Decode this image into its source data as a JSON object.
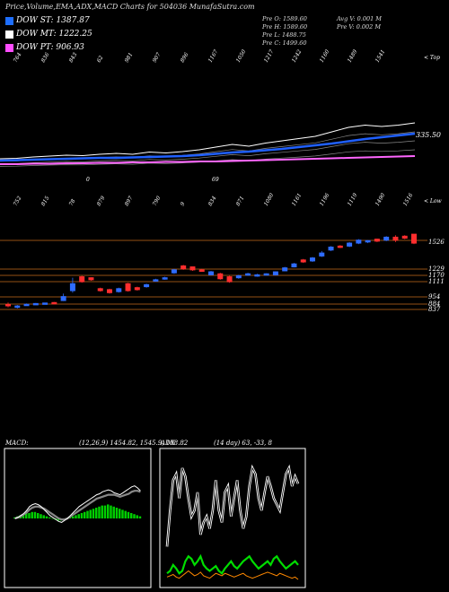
{
  "header": "Price,Volume,EMA,ADX,MACD Charts for 504036  MunafaSutra.com",
  "dow": [
    {
      "label": "DOW ST: 1387.87",
      "color": "#1e6fff"
    },
    {
      "label": "DOW MT: 1222.25",
      "color": "#ffffff"
    },
    {
      "label": "DOW PT: 906.93",
      "color": "#ff4dff"
    }
  ],
  "prev": {
    "open": "Pre   O: 1589.60",
    "high": "Pre   H: 1589.60",
    "low": "Pre   L: 1488.75",
    "close": "Pre   C: 1499.60",
    "avgv": "Avg V: 0.001  M",
    "prev": "Pre   V: 0.002  M"
  },
  "chart_data": [
    {
      "type": "line",
      "name": "ema",
      "top_labels": [
        "764",
        "836",
        "843",
        "62",
        "981",
        "907",
        "896",
        "1167",
        "1050",
        "1217",
        "1242",
        "1160",
        "1489",
        "1541"
      ],
      "mid_labels": [
        "0",
        "69"
      ],
      "ema_value_label": "335.50",
      "corner_label": "< Top",
      "series": [
        {
          "color": "#ffffff",
          "values": [
            20,
            21,
            24,
            26,
            28,
            27,
            30,
            32,
            30,
            35,
            33,
            36,
            40,
            46,
            52,
            48,
            55,
            60,
            65,
            70,
            80,
            90,
            95,
            92,
            95,
            100
          ]
        },
        {
          "color": "#2060ff",
          "values": [
            12,
            13,
            14,
            15,
            16,
            17,
            18,
            18,
            19,
            20,
            21,
            22,
            24,
            27,
            30,
            32,
            35,
            38,
            42,
            46,
            50,
            55,
            60,
            64,
            68,
            72
          ]
        },
        {
          "color": "#ff66ff",
          "values": [
            0,
            0,
            1,
            1,
            2,
            2,
            3,
            3,
            4,
            4,
            5,
            5,
            6,
            6,
            7,
            8,
            9,
            10,
            11,
            12,
            13,
            14,
            15,
            16,
            17,
            18
          ]
        }
      ]
    },
    {
      "type": "candlestick",
      "name": "price",
      "top_labels": [
        "752",
        "815",
        "78",
        "879",
        "897",
        "790",
        "9",
        "834",
        "871",
        "1080",
        "1161",
        "1196",
        "1119",
        "1490",
        "1516"
      ],
      "corner_label": "< Low",
      "levels": [
        "1526",
        "1229",
        "1170",
        "1111",
        "954",
        "884",
        "837"
      ],
      "candles": [
        {
          "o": 880,
          "c": 870,
          "h": 900,
          "l": 850,
          "up": false
        },
        {
          "o": 860,
          "c": 865,
          "h": 875,
          "l": 840,
          "up": true
        },
        {
          "o": 880,
          "c": 882,
          "h": 890,
          "l": 875,
          "up": true
        },
        {
          "o": 885,
          "c": 890,
          "h": 895,
          "l": 880,
          "up": true
        },
        {
          "o": 890,
          "c": 895,
          "h": 898,
          "l": 885,
          "up": true
        },
        {
          "o": 900,
          "c": 898,
          "h": 905,
          "l": 895,
          "up": false
        },
        {
          "o": 920,
          "c": 960,
          "h": 990,
          "l": 915,
          "up": true
        },
        {
          "o": 1020,
          "c": 1090,
          "h": 1150,
          "l": 1000,
          "up": true
        },
        {
          "o": 1160,
          "c": 1110,
          "h": 1170,
          "l": 1100,
          "up": false
        },
        {
          "o": 1150,
          "c": 1130,
          "h": 1155,
          "l": 1120,
          "up": false
        },
        {
          "o": 1040,
          "c": 1020,
          "h": 1050,
          "l": 1010,
          "up": false
        },
        {
          "o": 1030,
          "c": 1000,
          "h": 1040,
          "l": 990,
          "up": false
        },
        {
          "o": 1010,
          "c": 1040,
          "h": 1050,
          "l": 1000,
          "up": true
        },
        {
          "o": 1090,
          "c": 1020,
          "h": 1100,
          "l": 1010,
          "up": false
        },
        {
          "o": 1050,
          "c": 1030,
          "h": 1060,
          "l": 1020,
          "up": false
        },
        {
          "o": 1060,
          "c": 1080,
          "h": 1090,
          "l": 1050,
          "up": true
        },
        {
          "o": 1120,
          "c": 1130,
          "h": 1140,
          "l": 1110,
          "up": true
        },
        {
          "o": 1140,
          "c": 1150,
          "h": 1160,
          "l": 1130,
          "up": true
        },
        {
          "o": 1200,
          "c": 1230,
          "h": 1240,
          "l": 1190,
          "up": true
        },
        {
          "o": 1270,
          "c": 1240,
          "h": 1280,
          "l": 1230,
          "up": false
        },
        {
          "o": 1260,
          "c": 1230,
          "h": 1265,
          "l": 1220,
          "up": false
        },
        {
          "o": 1230,
          "c": 1215,
          "h": 1240,
          "l": 1210,
          "up": false
        },
        {
          "o": 1180,
          "c": 1210,
          "h": 1220,
          "l": 1175,
          "up": true
        },
        {
          "o": 1190,
          "c": 1140,
          "h": 1200,
          "l": 1130,
          "up": false
        },
        {
          "o": 1160,
          "c": 1110,
          "h": 1170,
          "l": 1100,
          "up": false
        },
        {
          "o": 1150,
          "c": 1170,
          "h": 1180,
          "l": 1140,
          "up": true
        },
        {
          "o": 1180,
          "c": 1190,
          "h": 1200,
          "l": 1170,
          "up": true
        },
        {
          "o": 1170,
          "c": 1180,
          "h": 1190,
          "l": 1160,
          "up": true
        },
        {
          "o": 1185,
          "c": 1190,
          "h": 1195,
          "l": 1180,
          "up": true
        },
        {
          "o": 1180,
          "c": 1210,
          "h": 1215,
          "l": 1175,
          "up": true
        },
        {
          "o": 1220,
          "c": 1250,
          "h": 1260,
          "l": 1215,
          "up": true
        },
        {
          "o": 1260,
          "c": 1290,
          "h": 1300,
          "l": 1255,
          "up": true
        },
        {
          "o": 1330,
          "c": 1310,
          "h": 1340,
          "l": 1300,
          "up": false
        },
        {
          "o": 1320,
          "c": 1350,
          "h": 1360,
          "l": 1310,
          "up": true
        },
        {
          "o": 1370,
          "c": 1400,
          "h": 1420,
          "l": 1360,
          "up": true
        },
        {
          "o": 1430,
          "c": 1460,
          "h": 1470,
          "l": 1420,
          "up": true
        },
        {
          "o": 1470,
          "c": 1460,
          "h": 1480,
          "l": 1450,
          "up": false
        },
        {
          "o": 1470,
          "c": 1500,
          "h": 1510,
          "l": 1460,
          "up": true
        },
        {
          "o": 1500,
          "c": 1530,
          "h": 1540,
          "l": 1490,
          "up": true
        },
        {
          "o": 1520,
          "c": 1525,
          "h": 1530,
          "l": 1500,
          "up": true
        },
        {
          "o": 1540,
          "c": 1520,
          "h": 1545,
          "l": 1510,
          "up": false
        },
        {
          "o": 1530,
          "c": 1560,
          "h": 1570,
          "l": 1520,
          "up": true
        },
        {
          "o": 1560,
          "c": 1530,
          "h": 1580,
          "l": 1510,
          "up": false
        },
        {
          "o": 1570,
          "c": 1550,
          "h": 1580,
          "l": 1540,
          "up": false
        },
        {
          "o": 1590,
          "c": 1500,
          "h": 1590,
          "l": 1490,
          "up": false
        }
      ]
    },
    {
      "type": "bar",
      "name": "macd",
      "title": "MACD:",
      "params": "(12,26,9) 1454.82,  1545.9,  108.82",
      "histogram": [
        1,
        2,
        3,
        4,
        5,
        5,
        6,
        6,
        5,
        4,
        3,
        2,
        1,
        0,
        -1,
        -2,
        -2,
        -1,
        0,
        1,
        2,
        3,
        4,
        5,
        6,
        7,
        8,
        9,
        10,
        11,
        12,
        12,
        13,
        12,
        11,
        10,
        9,
        8,
        7,
        6,
        5,
        4,
        3,
        2
      ],
      "macd_line": [
        0,
        1,
        3,
        5,
        8,
        12,
        14,
        15,
        14,
        12,
        9,
        6,
        3,
        1,
        -1,
        -3,
        -4,
        -2,
        0,
        3,
        6,
        9,
        12,
        14,
        16,
        18,
        20,
        22,
        24,
        25,
        27,
        28,
        29,
        28,
        26,
        25,
        24,
        26,
        28,
        30,
        32,
        33,
        31,
        28
      ],
      "signal_line": [
        0,
        1,
        2,
        4,
        6,
        9,
        11,
        12,
        12,
        11,
        10,
        8,
        6,
        4,
        2,
        0,
        -1,
        -1,
        0,
        2,
        4,
        6,
        8,
        10,
        12,
        14,
        16,
        18,
        20,
        21,
        22,
        23,
        24,
        24,
        24,
        23,
        22,
        23,
        24,
        25,
        27,
        28,
        28,
        27
      ]
    },
    {
      "type": "line",
      "name": "adx",
      "title": "ADX",
      "params": "(14  day) 63,  -33,  8",
      "series": [
        {
          "name": "adx",
          "color": "#ffffff",
          "values": [
            30,
            60,
            85,
            90,
            70,
            95,
            88,
            70,
            55,
            60,
            75,
            40,
            50,
            55,
            45,
            60,
            85,
            60,
            50,
            75,
            80,
            55,
            70,
            85,
            60,
            45,
            55,
            80,
            95,
            90,
            70,
            60,
            75,
            88,
            80,
            70,
            65,
            60,
            75,
            90,
            95,
            80,
            88,
            82
          ]
        },
        {
          "name": "+di",
          "color": "#00dd00",
          "values": [
            8,
            10,
            15,
            12,
            8,
            10,
            18,
            22,
            20,
            15,
            18,
            22,
            15,
            12,
            10,
            12,
            14,
            10,
            8,
            12,
            15,
            18,
            14,
            12,
            15,
            18,
            20,
            22,
            18,
            15,
            12,
            14,
            16,
            18,
            15,
            20,
            22,
            18,
            15,
            12,
            14,
            16,
            18,
            15
          ]
        },
        {
          "name": "-di",
          "color": "#ff8800",
          "values": [
            5,
            6,
            7,
            5,
            4,
            6,
            8,
            10,
            8,
            6,
            7,
            9,
            6,
            5,
            4,
            6,
            8,
            7,
            6,
            8,
            7,
            6,
            5,
            6,
            7,
            8,
            6,
            5,
            4,
            5,
            6,
            7,
            8,
            9,
            8,
            7,
            6,
            8,
            7,
            6,
            5,
            4,
            5,
            3
          ]
        }
      ]
    }
  ]
}
